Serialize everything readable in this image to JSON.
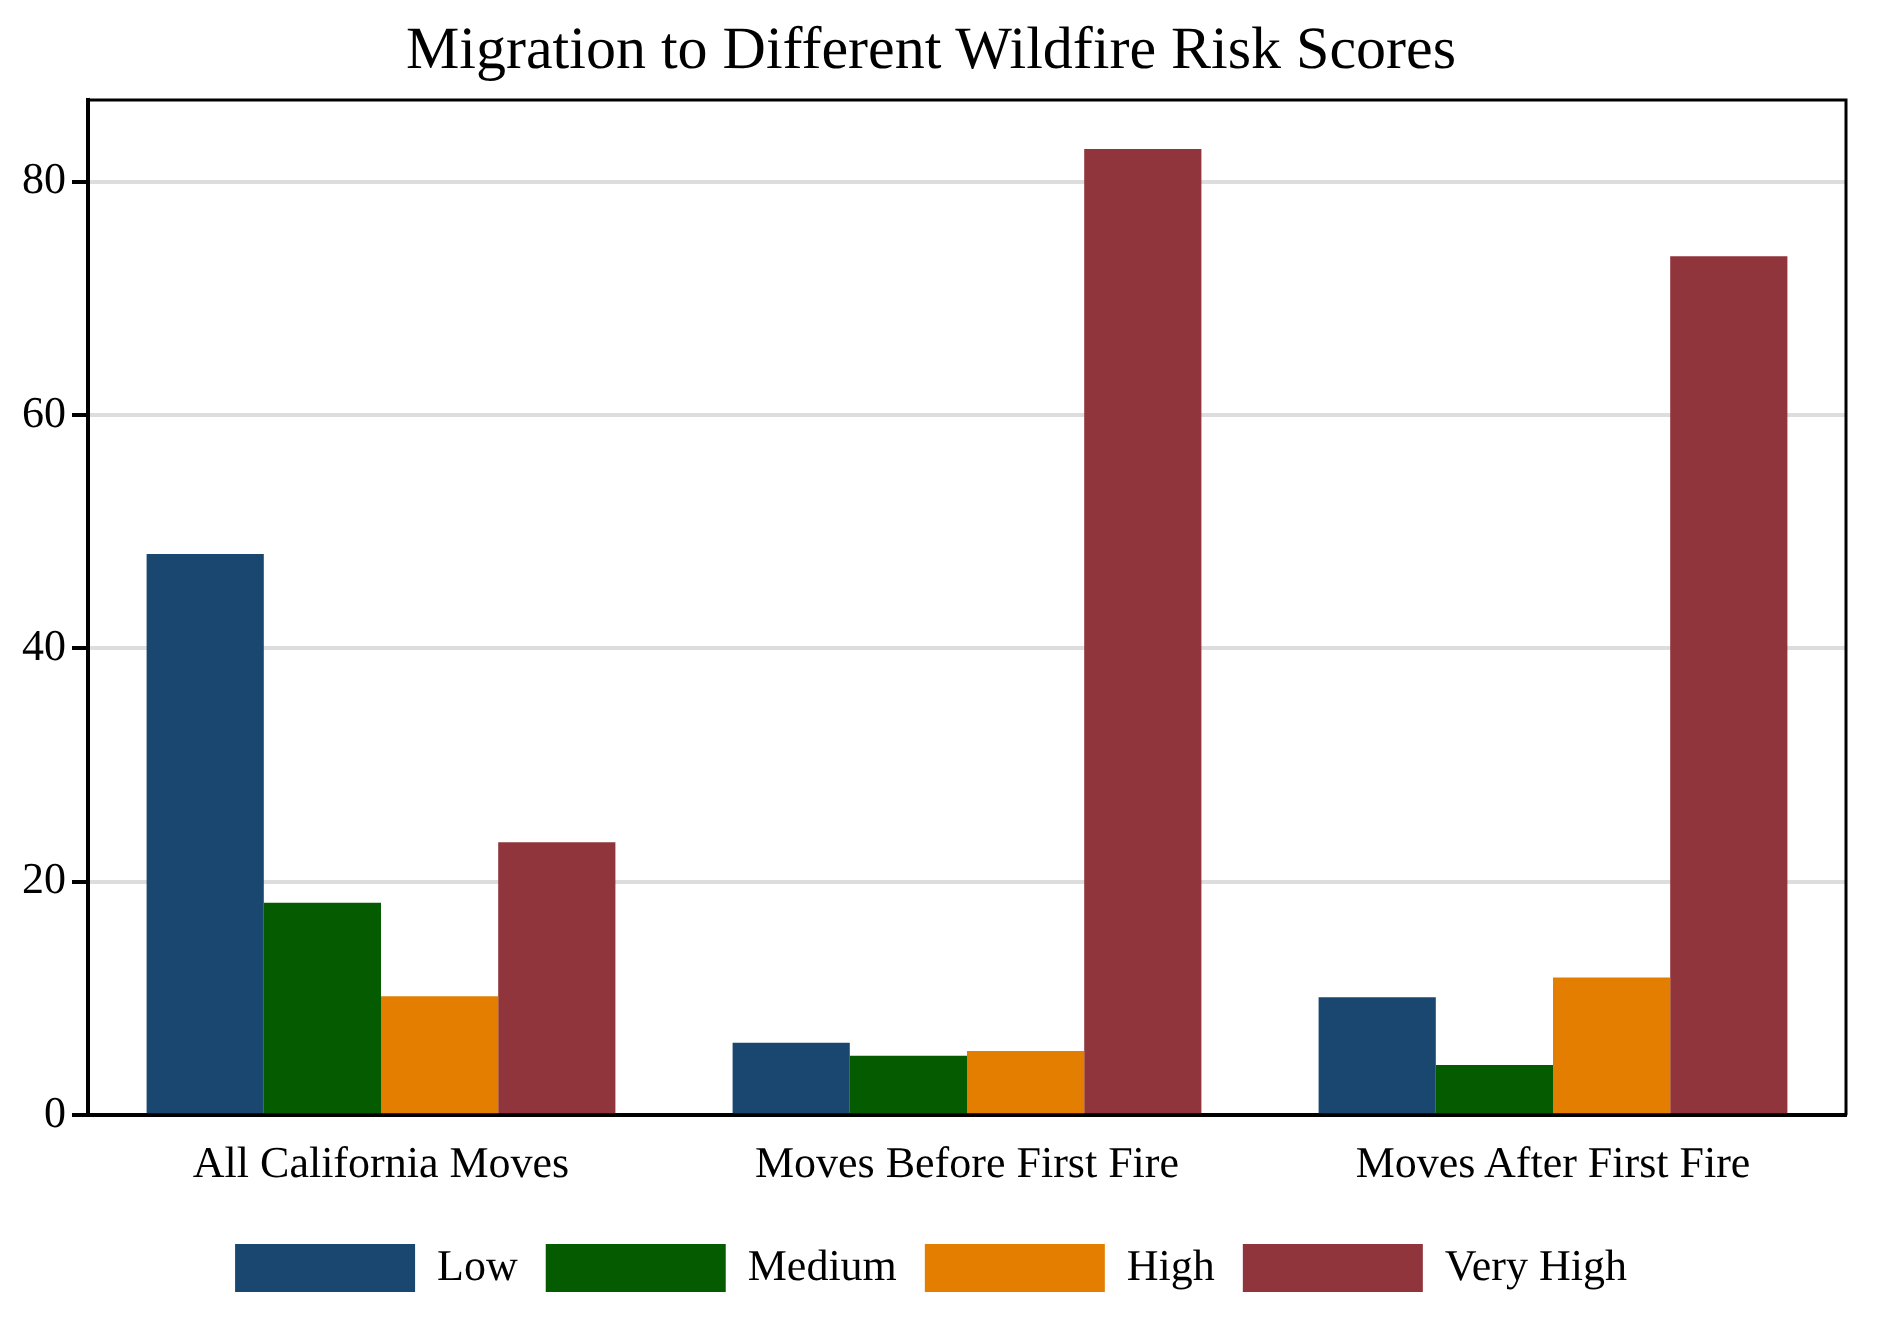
{
  "chart_data": {
    "type": "bar",
    "title": "Migration to Different Wildfire Risk Scores",
    "categories": [
      "All California Moves",
      "Moves Before First Fire",
      "Moves After First Fire"
    ],
    "series": [
      {
        "name": "Low",
        "color": "#1a476f",
        "values": [
          48.1,
          6.2,
          10.1
        ]
      },
      {
        "name": "Medium",
        "color": "#055c00",
        "values": [
          18.2,
          5.1,
          4.3
        ]
      },
      {
        "name": "High",
        "color": "#e37e00",
        "values": [
          10.2,
          5.5,
          11.8
        ]
      },
      {
        "name": "Very High",
        "color": "#90353b",
        "values": [
          23.4,
          82.8,
          73.6
        ]
      }
    ],
    "ylim": [
      0,
      87
    ],
    "yticks": [
      0,
      20,
      40,
      60,
      80
    ],
    "grid": "y",
    "legend": "bottom"
  }
}
